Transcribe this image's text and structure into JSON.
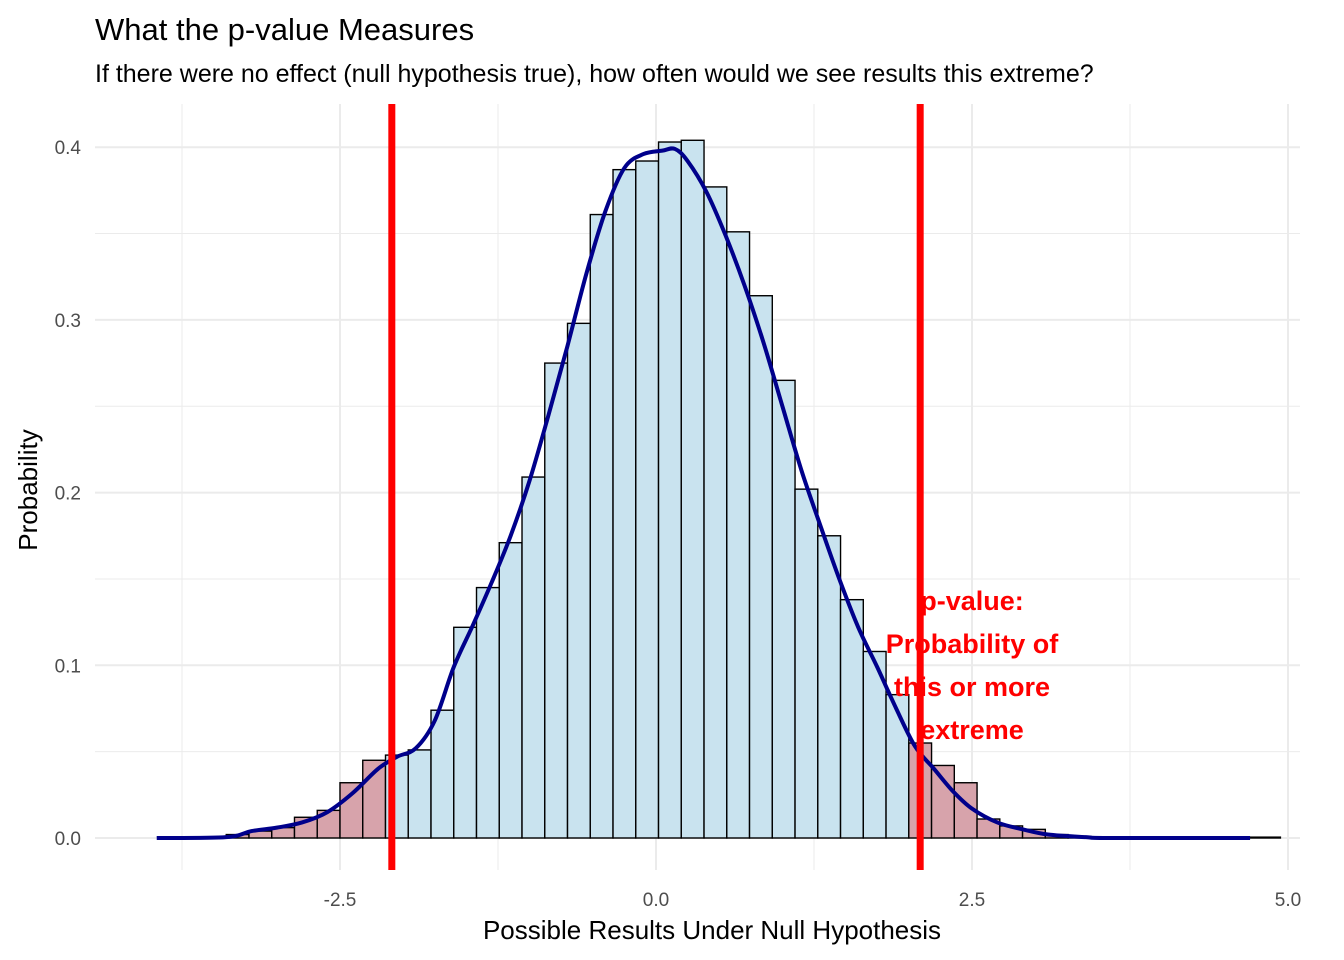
{
  "chart_data": {
    "type": "histogram",
    "title": "What the p-value Measures",
    "subtitle": "If there were no effect (null hypothesis true), how often would we see results this extreme?",
    "xlabel": "Possible Results Under Null Hypothesis",
    "ylabel": "Probability",
    "xlim": [
      -4.0,
      5.0
    ],
    "ylim": [
      -0.02,
      0.42
    ],
    "x_ticks": [
      -2.5,
      0.0,
      2.5,
      5.0
    ],
    "x_tick_labels": [
      "-2.5",
      "0.0",
      "2.5",
      "5.0"
    ],
    "y_ticks": [
      0.0,
      0.1,
      0.2,
      0.3,
      0.4
    ],
    "y_tick_labels": [
      "0.0",
      "0.1",
      "0.2",
      "0.3",
      "0.4"
    ],
    "grid": true,
    "bin_width": 0.18,
    "bins": [
      {
        "x0": -3.4,
        "x1": -3.22,
        "value": 0.002,
        "region": "tail"
      },
      {
        "x0": -3.22,
        "x1": -3.04,
        "value": 0.004,
        "region": "tail"
      },
      {
        "x0": -3.04,
        "x1": -2.86,
        "value": 0.006,
        "region": "tail"
      },
      {
        "x0": -2.86,
        "x1": -2.68,
        "value": 0.012,
        "region": "tail"
      },
      {
        "x0": -2.68,
        "x1": -2.5,
        "value": 0.016,
        "region": "tail"
      },
      {
        "x0": -2.5,
        "x1": -2.32,
        "value": 0.032,
        "region": "tail"
      },
      {
        "x0": -2.32,
        "x1": -2.14,
        "value": 0.045,
        "region": "tail"
      },
      {
        "x0": -2.14,
        "x1": -1.96,
        "value": 0.048,
        "region": "body"
      },
      {
        "x0": -1.96,
        "x1": -1.78,
        "value": 0.051,
        "region": "body"
      },
      {
        "x0": -1.78,
        "x1": -1.6,
        "value": 0.074,
        "region": "body"
      },
      {
        "x0": -1.6,
        "x1": -1.42,
        "value": 0.122,
        "region": "body"
      },
      {
        "x0": -1.42,
        "x1": -1.24,
        "value": 0.145,
        "region": "body"
      },
      {
        "x0": -1.24,
        "x1": -1.06,
        "value": 0.171,
        "region": "body"
      },
      {
        "x0": -1.06,
        "x1": -0.88,
        "value": 0.209,
        "region": "body"
      },
      {
        "x0": -0.88,
        "x1": -0.7,
        "value": 0.275,
        "region": "body"
      },
      {
        "x0": -0.7,
        "x1": -0.52,
        "value": 0.298,
        "region": "body"
      },
      {
        "x0": -0.52,
        "x1": -0.34,
        "value": 0.361,
        "region": "body"
      },
      {
        "x0": -0.34,
        "x1": -0.16,
        "value": 0.387,
        "region": "body"
      },
      {
        "x0": -0.16,
        "x1": 0.02,
        "value": 0.392,
        "region": "body"
      },
      {
        "x0": 0.02,
        "x1": 0.2,
        "value": 0.403,
        "region": "body"
      },
      {
        "x0": 0.2,
        "x1": 0.38,
        "value": 0.404,
        "region": "body"
      },
      {
        "x0": 0.38,
        "x1": 0.56,
        "value": 0.377,
        "region": "body"
      },
      {
        "x0": 0.56,
        "x1": 0.74,
        "value": 0.351,
        "region": "body"
      },
      {
        "x0": 0.74,
        "x1": 0.92,
        "value": 0.314,
        "region": "body"
      },
      {
        "x0": 0.92,
        "x1": 1.1,
        "value": 0.265,
        "region": "body"
      },
      {
        "x0": 1.1,
        "x1": 1.28,
        "value": 0.202,
        "region": "body"
      },
      {
        "x0": 1.28,
        "x1": 1.46,
        "value": 0.175,
        "region": "body"
      },
      {
        "x0": 1.46,
        "x1": 1.64,
        "value": 0.138,
        "region": "body"
      },
      {
        "x0": 1.64,
        "x1": 1.82,
        "value": 0.108,
        "region": "body"
      },
      {
        "x0": 1.82,
        "x1": 2.0,
        "value": 0.083,
        "region": "body"
      },
      {
        "x0": 2.0,
        "x1": 2.18,
        "value": 0.055,
        "region": "tail"
      },
      {
        "x0": 2.18,
        "x1": 2.36,
        "value": 0.042,
        "region": "tail"
      },
      {
        "x0": 2.36,
        "x1": 2.54,
        "value": 0.032,
        "region": "tail"
      },
      {
        "x0": 2.54,
        "x1": 2.72,
        "value": 0.011,
        "region": "tail"
      },
      {
        "x0": 2.72,
        "x1": 2.9,
        "value": 0.007,
        "region": "tail"
      },
      {
        "x0": 2.9,
        "x1": 3.08,
        "value": 0.005,
        "region": "tail"
      },
      {
        "x0": 3.08,
        "x1": 3.26,
        "value": 0.002,
        "region": "tail"
      },
      {
        "x0": 3.26,
        "x1": 3.44,
        "value": 0.001,
        "region": "tail"
      },
      {
        "x0": 3.44,
        "x1": 4.94,
        "value": 0.0005,
        "region": "tail"
      }
    ],
    "density_curve": [
      [
        -3.95,
        0.0
      ],
      [
        -3.4,
        0.0005
      ],
      [
        -3.2,
        0.004
      ],
      [
        -3.0,
        0.006
      ],
      [
        -2.8,
        0.009
      ],
      [
        -2.6,
        0.015
      ],
      [
        -2.4,
        0.026
      ],
      [
        -2.2,
        0.04
      ],
      [
        -2.05,
        0.047
      ],
      [
        -1.9,
        0.052
      ],
      [
        -1.75,
        0.068
      ],
      [
        -1.6,
        0.099
      ],
      [
        -1.45,
        0.123
      ],
      [
        -1.3,
        0.148
      ],
      [
        -1.15,
        0.175
      ],
      [
        -1.0,
        0.207
      ],
      [
        -0.85,
        0.245
      ],
      [
        -0.7,
        0.285
      ],
      [
        -0.55,
        0.327
      ],
      [
        -0.4,
        0.363
      ],
      [
        -0.25,
        0.388
      ],
      [
        -0.1,
        0.396
      ],
      [
        0.05,
        0.398
      ],
      [
        0.15,
        0.399
      ],
      [
        0.25,
        0.392
      ],
      [
        0.4,
        0.374
      ],
      [
        0.55,
        0.349
      ],
      [
        0.7,
        0.32
      ],
      [
        0.85,
        0.287
      ],
      [
        1.0,
        0.25
      ],
      [
        1.15,
        0.213
      ],
      [
        1.3,
        0.181
      ],
      [
        1.45,
        0.15
      ],
      [
        1.6,
        0.122
      ],
      [
        1.75,
        0.099
      ],
      [
        1.9,
        0.075
      ],
      [
        2.05,
        0.053
      ],
      [
        2.2,
        0.04
      ],
      [
        2.35,
        0.027
      ],
      [
        2.5,
        0.017
      ],
      [
        2.7,
        0.009
      ],
      [
        2.9,
        0.005
      ],
      [
        3.1,
        0.002
      ],
      [
        3.4,
        0.0005
      ],
      [
        3.6,
        0.0
      ],
      [
        4.7,
        0.0
      ]
    ],
    "critical_lines": [
      -2.09,
      2.09
    ],
    "colors": {
      "body_fill": "#c9e3ef",
      "tail_fill": "#d7a3ab",
      "bar_stroke": "#000000",
      "density": "#00008b",
      "critical_line": "#ff0000",
      "annotation": "#ff0000",
      "grid": "#ebebeb"
    },
    "annotation": {
      "lines": [
        "p-value:",
        "Probability of",
        "this or more",
        "extreme"
      ],
      "x": 2.5,
      "y": 0.1
    }
  }
}
